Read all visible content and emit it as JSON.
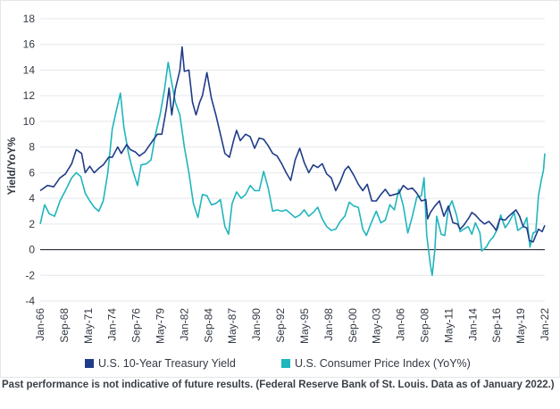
{
  "chart_data": {
    "type": "line",
    "ylabel": "Yield/YoY%",
    "xlabel": "",
    "ylim": [
      -4,
      18
    ],
    "yticks": [
      18,
      16,
      14,
      12,
      10,
      8,
      6,
      4,
      2,
      0,
      -2,
      -4
    ],
    "xlim": [
      1966.0,
      2022.0
    ],
    "xticks": [
      {
        "label": "Jan-66",
        "t": 1966.0
      },
      {
        "label": "Sep-68",
        "t": 1968.67
      },
      {
        "label": "May-71",
        "t": 1971.33
      },
      {
        "label": "Jan-74",
        "t": 1974.0
      },
      {
        "label": "Sep-76",
        "t": 1976.67
      },
      {
        "label": "May-79",
        "t": 1979.33
      },
      {
        "label": "Jan-82",
        "t": 1982.0
      },
      {
        "label": "Sep-84",
        "t": 1984.67
      },
      {
        "label": "May-87",
        "t": 1987.33
      },
      {
        "label": "Jan-90",
        "t": 1990.0
      },
      {
        "label": "Sep-92",
        "t": 1992.67
      },
      {
        "label": "May-95",
        "t": 1995.33
      },
      {
        "label": "Jan-98",
        "t": 1998.0
      },
      {
        "label": "Sep-00",
        "t": 2000.67
      },
      {
        "label": "May-03",
        "t": 2003.33
      },
      {
        "label": "Jan-06",
        "t": 2006.0
      },
      {
        "label": "Sep-08",
        "t": 2008.67
      },
      {
        "label": "May-11",
        "t": 2011.33
      },
      {
        "label": "Jan-14",
        "t": 2014.0
      },
      {
        "label": "Sep-16",
        "t": 2016.67
      },
      {
        "label": "May-19",
        "t": 2019.33
      },
      {
        "label": "Jan-22",
        "t": 2022.0
      }
    ],
    "series": [
      {
        "name": "U.S. 10-Year Treasury Yield",
        "color": "#1f3c88",
        "points": [
          [
            1966.0,
            4.6
          ],
          [
            1966.8,
            5.0
          ],
          [
            1967.5,
            4.9
          ],
          [
            1968.2,
            5.6
          ],
          [
            1968.8,
            5.9
          ],
          [
            1969.5,
            6.7
          ],
          [
            1970.0,
            7.8
          ],
          [
            1970.6,
            7.5
          ],
          [
            1971.0,
            6.0
          ],
          [
            1971.5,
            6.5
          ],
          [
            1972.0,
            6.0
          ],
          [
            1972.6,
            6.4
          ],
          [
            1973.0,
            6.6
          ],
          [
            1973.6,
            7.2
          ],
          [
            1974.0,
            7.2
          ],
          [
            1974.6,
            8.0
          ],
          [
            1975.0,
            7.5
          ],
          [
            1975.6,
            8.2
          ],
          [
            1976.0,
            7.8
          ],
          [
            1976.6,
            7.6
          ],
          [
            1977.0,
            7.3
          ],
          [
            1977.6,
            7.6
          ],
          [
            1978.0,
            8.0
          ],
          [
            1978.6,
            8.6
          ],
          [
            1979.0,
            9.0
          ],
          [
            1979.5,
            9.0
          ],
          [
            1980.0,
            11.0
          ],
          [
            1980.3,
            12.6
          ],
          [
            1980.6,
            10.5
          ],
          [
            1981.0,
            12.5
          ],
          [
            1981.5,
            14.0
          ],
          [
            1981.75,
            15.8
          ],
          [
            1982.0,
            13.9
          ],
          [
            1982.5,
            14.0
          ],
          [
            1982.9,
            11.5
          ],
          [
            1983.3,
            10.5
          ],
          [
            1983.7,
            11.5
          ],
          [
            1984.0,
            12.0
          ],
          [
            1984.5,
            13.8
          ],
          [
            1985.0,
            11.8
          ],
          [
            1985.5,
            10.5
          ],
          [
            1986.0,
            9.0
          ],
          [
            1986.5,
            7.5
          ],
          [
            1987.0,
            7.2
          ],
          [
            1987.5,
            8.6
          ],
          [
            1987.8,
            9.3
          ],
          [
            1988.2,
            8.5
          ],
          [
            1988.8,
            9.0
          ],
          [
            1989.3,
            8.8
          ],
          [
            1989.8,
            7.9
          ],
          [
            1990.3,
            8.7
          ],
          [
            1990.8,
            8.6
          ],
          [
            1991.3,
            8.1
          ],
          [
            1991.8,
            7.5
          ],
          [
            1992.3,
            7.3
          ],
          [
            1992.8,
            6.7
          ],
          [
            1993.3,
            6.0
          ],
          [
            1993.8,
            5.4
          ],
          [
            1994.3,
            7.0
          ],
          [
            1994.8,
            7.9
          ],
          [
            1995.3,
            6.8
          ],
          [
            1995.8,
            6.0
          ],
          [
            1996.3,
            6.6
          ],
          [
            1996.8,
            6.4
          ],
          [
            1997.3,
            6.7
          ],
          [
            1997.8,
            5.9
          ],
          [
            1998.3,
            5.6
          ],
          [
            1998.8,
            4.6
          ],
          [
            1999.3,
            5.3
          ],
          [
            1999.8,
            6.2
          ],
          [
            2000.2,
            6.5
          ],
          [
            2000.8,
            5.8
          ],
          [
            2001.3,
            5.1
          ],
          [
            2001.8,
            4.6
          ],
          [
            2002.3,
            5.1
          ],
          [
            2002.8,
            3.8
          ],
          [
            2003.3,
            3.8
          ],
          [
            2003.8,
            4.3
          ],
          [
            2004.3,
            4.7
          ],
          [
            2004.8,
            4.2
          ],
          [
            2005.3,
            4.3
          ],
          [
            2005.8,
            4.4
          ],
          [
            2006.3,
            5.0
          ],
          [
            2006.8,
            4.7
          ],
          [
            2007.3,
            4.8
          ],
          [
            2007.8,
            4.4
          ],
          [
            2008.3,
            3.8
          ],
          [
            2008.8,
            3.9
          ],
          [
            2009.0,
            2.4
          ],
          [
            2009.3,
            2.9
          ],
          [
            2009.8,
            3.4
          ],
          [
            2010.3,
            3.8
          ],
          [
            2010.8,
            2.6
          ],
          [
            2011.3,
            3.4
          ],
          [
            2011.8,
            2.1
          ],
          [
            2012.3,
            2.0
          ],
          [
            2012.6,
            1.6
          ],
          [
            2013.0,
            1.9
          ],
          [
            2013.6,
            2.5
          ],
          [
            2013.9,
            2.9
          ],
          [
            2014.3,
            2.7
          ],
          [
            2014.8,
            2.3
          ],
          [
            2015.3,
            2.0
          ],
          [
            2015.8,
            2.2
          ],
          [
            2016.3,
            1.8
          ],
          [
            2016.6,
            1.5
          ],
          [
            2017.0,
            2.4
          ],
          [
            2017.6,
            2.3
          ],
          [
            2018.0,
            2.6
          ],
          [
            2018.8,
            3.1
          ],
          [
            2019.2,
            2.6
          ],
          [
            2019.6,
            1.8
          ],
          [
            2020.0,
            1.7
          ],
          [
            2020.3,
            0.7
          ],
          [
            2020.7,
            0.6
          ],
          [
            2021.0,
            1.1
          ],
          [
            2021.3,
            1.6
          ],
          [
            2021.7,
            1.4
          ],
          [
            2022.0,
            1.9
          ]
        ]
      },
      {
        "name": "U.S. Consumer Price Index (YoY%)",
        "color": "#1fb5bd",
        "points": [
          [
            1966.0,
            2.0
          ],
          [
            1966.5,
            3.5
          ],
          [
            1967.0,
            2.8
          ],
          [
            1967.6,
            2.6
          ],
          [
            1968.2,
            3.8
          ],
          [
            1968.8,
            4.6
          ],
          [
            1969.5,
            5.6
          ],
          [
            1970.0,
            6.0
          ],
          [
            1970.5,
            5.7
          ],
          [
            1971.0,
            4.4
          ],
          [
            1971.5,
            3.8
          ],
          [
            1972.0,
            3.3
          ],
          [
            1972.5,
            3.0
          ],
          [
            1973.0,
            3.8
          ],
          [
            1973.5,
            6.0
          ],
          [
            1974.0,
            9.4
          ],
          [
            1974.5,
            11.0
          ],
          [
            1974.9,
            12.2
          ],
          [
            1975.3,
            9.5
          ],
          [
            1975.8,
            7.5
          ],
          [
            1976.3,
            6.1
          ],
          [
            1976.8,
            5.0
          ],
          [
            1977.2,
            6.6
          ],
          [
            1977.8,
            6.7
          ],
          [
            1978.3,
            7.0
          ],
          [
            1978.8,
            9.0
          ],
          [
            1979.3,
            10.5
          ],
          [
            1979.8,
            12.5
          ],
          [
            1980.2,
            14.6
          ],
          [
            1980.6,
            13.0
          ],
          [
            1981.0,
            11.5
          ],
          [
            1981.5,
            10.5
          ],
          [
            1982.0,
            8.0
          ],
          [
            1982.5,
            6.0
          ],
          [
            1983.0,
            3.6
          ],
          [
            1983.5,
            2.5
          ],
          [
            1984.0,
            4.3
          ],
          [
            1984.5,
            4.2
          ],
          [
            1985.0,
            3.5
          ],
          [
            1985.5,
            3.6
          ],
          [
            1986.0,
            3.9
          ],
          [
            1986.5,
            1.8
          ],
          [
            1986.9,
            1.2
          ],
          [
            1987.3,
            3.6
          ],
          [
            1987.8,
            4.5
          ],
          [
            1988.3,
            4.0
          ],
          [
            1988.8,
            4.3
          ],
          [
            1989.3,
            5.0
          ],
          [
            1989.8,
            4.6
          ],
          [
            1990.3,
            4.6
          ],
          [
            1990.8,
            6.1
          ],
          [
            1991.3,
            4.8
          ],
          [
            1991.8,
            3.0
          ],
          [
            1992.3,
            3.1
          ],
          [
            1992.8,
            3.0
          ],
          [
            1993.3,
            3.1
          ],
          [
            1993.8,
            2.8
          ],
          [
            1994.3,
            2.5
          ],
          [
            1994.8,
            2.7
          ],
          [
            1995.3,
            3.1
          ],
          [
            1995.8,
            2.6
          ],
          [
            1996.3,
            2.9
          ],
          [
            1996.8,
            3.3
          ],
          [
            1997.3,
            2.4
          ],
          [
            1997.8,
            1.8
          ],
          [
            1998.3,
            1.5
          ],
          [
            1998.8,
            1.6
          ],
          [
            1999.3,
            2.2
          ],
          [
            1999.8,
            2.6
          ],
          [
            2000.3,
            3.7
          ],
          [
            2000.8,
            3.4
          ],
          [
            2001.3,
            3.3
          ],
          [
            2001.8,
            1.6
          ],
          [
            2002.2,
            1.1
          ],
          [
            2002.8,
            2.2
          ],
          [
            2003.3,
            3.0
          ],
          [
            2003.8,
            2.1
          ],
          [
            2004.3,
            2.3
          ],
          [
            2004.8,
            3.5
          ],
          [
            2005.3,
            3.1
          ],
          [
            2005.8,
            4.7
          ],
          [
            2006.3,
            3.4
          ],
          [
            2006.8,
            1.3
          ],
          [
            2007.3,
            2.6
          ],
          [
            2007.8,
            4.1
          ],
          [
            2008.3,
            4.2
          ],
          [
            2008.6,
            5.6
          ],
          [
            2008.9,
            1.1
          ],
          [
            2009.3,
            -1.2
          ],
          [
            2009.5,
            -2.0
          ],
          [
            2009.8,
            0.0
          ],
          [
            2010.0,
            2.6
          ],
          [
            2010.5,
            1.2
          ],
          [
            2010.9,
            1.1
          ],
          [
            2011.3,
            3.2
          ],
          [
            2011.7,
            3.8
          ],
          [
            2012.2,
            2.7
          ],
          [
            2012.6,
            1.4
          ],
          [
            2013.0,
            1.6
          ],
          [
            2013.5,
            1.8
          ],
          [
            2013.9,
            1.2
          ],
          [
            2014.3,
            2.1
          ],
          [
            2014.8,
            1.3
          ],
          [
            2015.0,
            -0.1
          ],
          [
            2015.5,
            0.2
          ],
          [
            2015.9,
            0.7
          ],
          [
            2016.3,
            1.0
          ],
          [
            2016.8,
            1.7
          ],
          [
            2017.1,
            2.7
          ],
          [
            2017.6,
            1.7
          ],
          [
            2018.0,
            2.1
          ],
          [
            2018.6,
            2.9
          ],
          [
            2019.0,
            1.5
          ],
          [
            2019.6,
            1.8
          ],
          [
            2020.0,
            2.5
          ],
          [
            2020.35,
            0.2
          ],
          [
            2020.7,
            1.3
          ],
          [
            2021.0,
            1.4
          ],
          [
            2021.3,
            4.2
          ],
          [
            2021.6,
            5.4
          ],
          [
            2021.85,
            6.2
          ],
          [
            2022.0,
            7.5
          ]
        ]
      }
    ],
    "legend": {
      "position": "bottom",
      "entries": [
        "U.S. 10-Year Treasury Yield",
        "U.S. Consumer Price Index (YoY%)"
      ]
    }
  },
  "footnote": "Past performance is not indicative of future results. (Federal Reserve Bank of St. Louis. Data as of January 2022.)"
}
